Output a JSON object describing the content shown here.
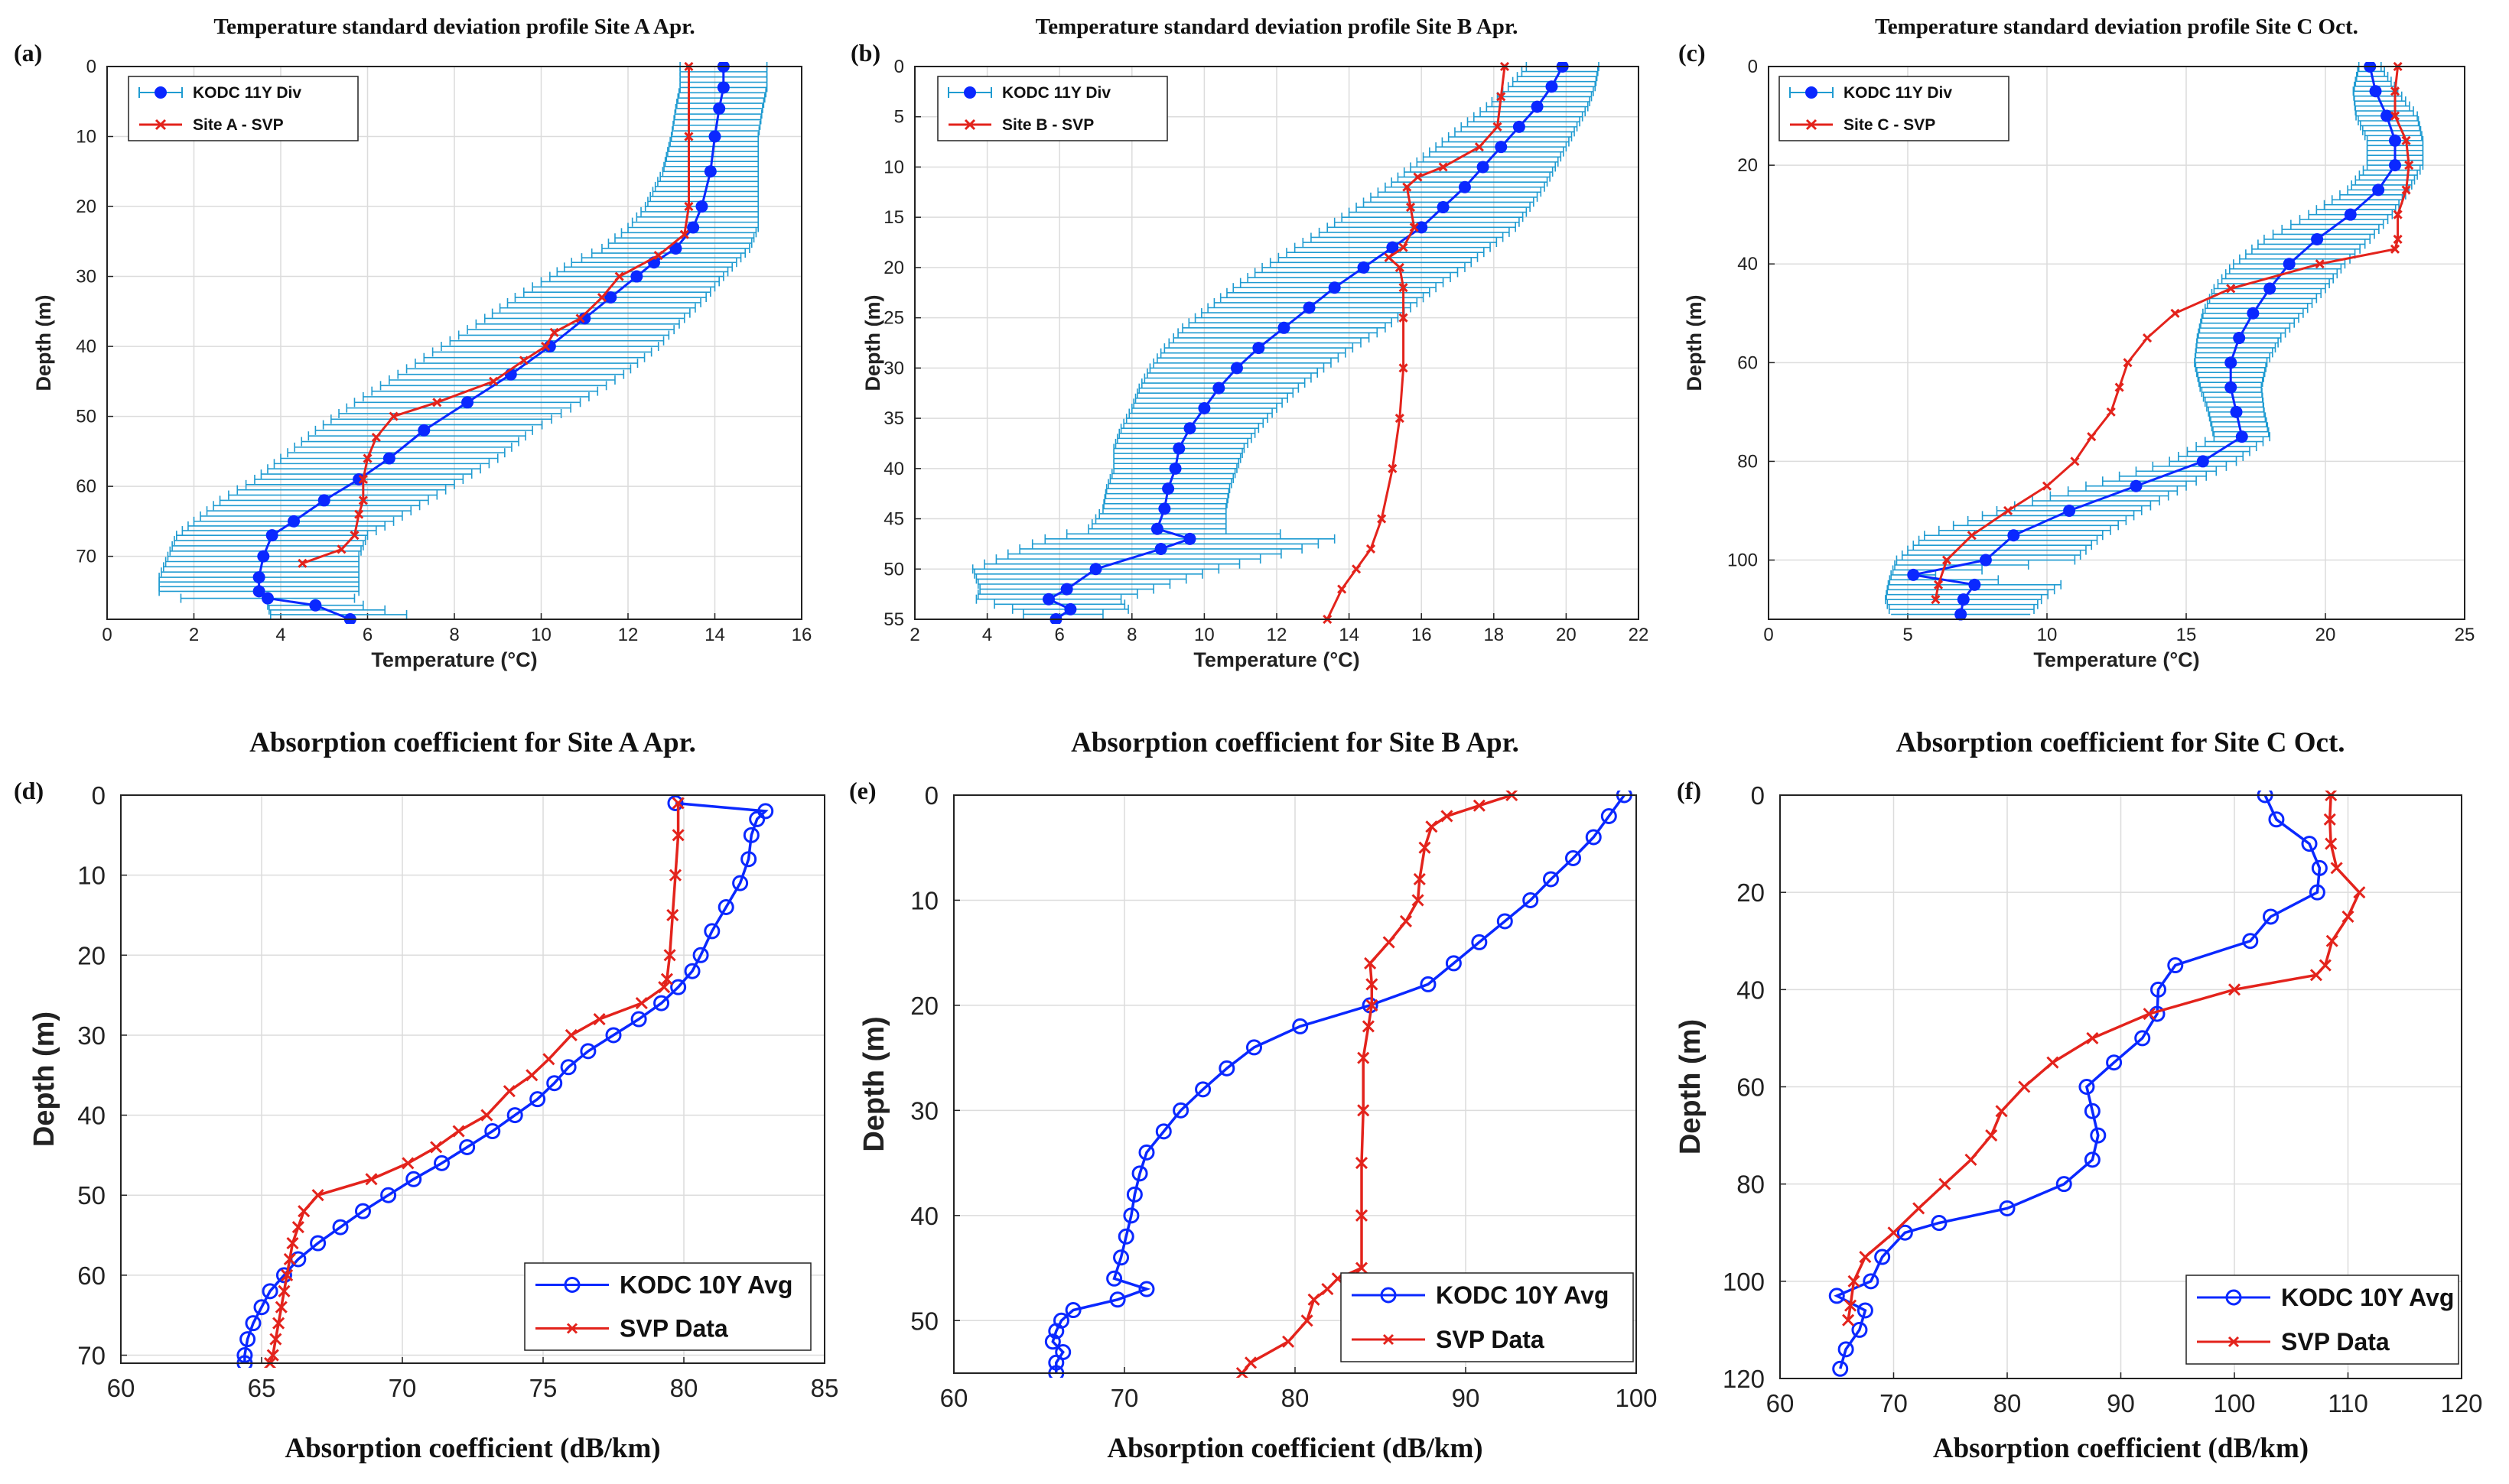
{
  "chart_data": [
    {
      "id": "a",
      "panel_label": "(a)",
      "type": "line",
      "title": "Temperature standard deviation profile Site A Apr.",
      "xlabel": "Temperature (°C)",
      "ylabel": "Depth (m)",
      "xlim": [
        0,
        16
      ],
      "ylim": [
        0,
        79
      ],
      "y_reversed": true,
      "xticks": [
        0,
        2,
        4,
        6,
        8,
        10,
        12,
        14,
        16
      ],
      "yticks": [
        0,
        10,
        20,
        30,
        40,
        50,
        60,
        70
      ],
      "legend": {
        "location": "top-left",
        "entries": [
          "KODC 11Y Div",
          "Site A - SVP"
        ]
      },
      "series": [
        {
          "name": "KODC 11Y Div",
          "color": "#0a28ff",
          "marker": "dot",
          "err_color": "#1f9bd1",
          "y": [
            0,
            3,
            6,
            10,
            15,
            20,
            23,
            26,
            28,
            30,
            33,
            36,
            40,
            44,
            48,
            52,
            56,
            59,
            62,
            65,
            67,
            70,
            73,
            75,
            76,
            77,
            79
          ],
          "x": [
            14.2,
            14.2,
            14.1,
            14.0,
            13.9,
            13.7,
            13.5,
            13.1,
            12.6,
            12.2,
            11.6,
            11.0,
            10.2,
            9.3,
            8.3,
            7.3,
            6.5,
            5.8,
            5.0,
            4.3,
            3.8,
            3.6,
            3.5,
            3.5,
            3.7,
            4.8,
            5.6
          ],
          "err": [
            1.0,
            1.0,
            1.0,
            1.0,
            1.1,
            1.3,
            1.5,
            1.7,
            1.9,
            2.0,
            2.2,
            2.3,
            2.5,
            2.6,
            2.6,
            2.5,
            2.5,
            2.4,
            2.4,
            2.3,
            2.2,
            2.2,
            2.3,
            2.3,
            2.0,
            1.1,
            1.8
          ]
        },
        {
          "name": "Site A - SVP",
          "color": "#e3231c",
          "marker": "x",
          "y": [
            0,
            10,
            20,
            24,
            27,
            30,
            33,
            36,
            38,
            40,
            42,
            45,
            48,
            50,
            53,
            56,
            59,
            62,
            64,
            67,
            69,
            71
          ],
          "x": [
            13.4,
            13.4,
            13.4,
            13.3,
            12.7,
            11.8,
            11.4,
            10.9,
            10.3,
            10.1,
            9.6,
            8.9,
            7.6,
            6.6,
            6.2,
            6.0,
            5.9,
            5.9,
            5.8,
            5.7,
            5.4,
            4.5
          ]
        }
      ]
    },
    {
      "id": "b",
      "panel_label": "(b)",
      "type": "line",
      "title": "Temperature standard deviation profile Site B Apr.",
      "xlabel": "Temperature (°C)",
      "ylabel": "Depth (m)",
      "xlim": [
        2,
        22
      ],
      "ylim": [
        0,
        55
      ],
      "y_reversed": true,
      "xticks": [
        2,
        4,
        6,
        8,
        10,
        12,
        14,
        16,
        18,
        20,
        22
      ],
      "yticks": [
        0,
        5,
        10,
        15,
        20,
        25,
        30,
        35,
        40,
        45,
        50,
        55
      ],
      "legend": {
        "location": "top-left",
        "entries": [
          "KODC 11Y Div",
          "Site B - SVP"
        ]
      },
      "series": [
        {
          "name": "KODC 11Y Div",
          "color": "#0a28ff",
          "marker": "dot",
          "err_color": "#1f9bd1",
          "y": [
            0,
            2,
            4,
            6,
            8,
            10,
            12,
            14,
            16,
            18,
            20,
            22,
            24,
            26,
            28,
            30,
            32,
            34,
            36,
            38,
            40,
            42,
            44,
            46,
            47,
            48,
            50,
            52,
            53,
            54,
            55
          ],
          "x": [
            19.9,
            19.6,
            19.2,
            18.7,
            18.2,
            17.7,
            17.2,
            16.6,
            16.0,
            15.2,
            14.4,
            13.6,
            12.9,
            12.2,
            11.5,
            10.9,
            10.4,
            10.0,
            9.6,
            9.3,
            9.2,
            9.0,
            8.9,
            8.7,
            9.6,
            8.8,
            7.0,
            6.2,
            5.7,
            6.3,
            5.9
          ],
          "err": [
            1.0,
            1.2,
            1.4,
            1.6,
            1.8,
            2.0,
            2.2,
            2.4,
            2.6,
            2.7,
            2.8,
            2.8,
            2.8,
            2.8,
            2.6,
            2.4,
            2.2,
            2.0,
            1.9,
            1.8,
            1.7,
            1.7,
            1.7,
            1.9,
            4.0,
            3.9,
            3.4,
            2.4,
            2.0,
            1.6,
            0.6
          ]
        },
        {
          "name": "Site B - SVP",
          "color": "#e3231c",
          "marker": "x",
          "y": [
            0,
            3,
            6,
            8,
            10,
            11,
            12,
            14,
            16,
            18,
            19,
            20,
            22,
            25,
            30,
            35,
            40,
            45,
            48,
            50,
            52,
            55
          ],
          "x": [
            18.3,
            18.2,
            18.1,
            17.6,
            16.6,
            15.9,
            15.6,
            15.7,
            15.8,
            15.5,
            15.1,
            15.4,
            15.5,
            15.5,
            15.5,
            15.4,
            15.2,
            14.9,
            14.6,
            14.2,
            13.8,
            13.4
          ]
        }
      ]
    },
    {
      "id": "c",
      "panel_label": "(c)",
      "type": "line",
      "title": "Temperature standard deviation profile Site C Oct.",
      "xlabel": "Temperature (°C)",
      "ylabel": "Depth (m)",
      "xlim": [
        0,
        25
      ],
      "ylim": [
        0,
        112
      ],
      "y_reversed": true,
      "xticks": [
        0,
        5,
        10,
        15,
        20,
        25
      ],
      "yticks": [
        0,
        20,
        40,
        60,
        80,
        100
      ],
      "legend": {
        "location": "top-left",
        "entries": [
          "KODC 11Y Div",
          "Site C - SVP"
        ]
      },
      "series": [
        {
          "name": "KODC 11Y Div",
          "color": "#0a28ff",
          "marker": "dot",
          "err_color": "#1f9bd1",
          "y": [
            0,
            5,
            10,
            15,
            20,
            25,
            30,
            35,
            40,
            45,
            50,
            55,
            60,
            65,
            70,
            75,
            80,
            85,
            90,
            95,
            100,
            103,
            105,
            108,
            111
          ],
          "x": [
            21.6,
            21.8,
            22.2,
            22.5,
            22.5,
            21.9,
            20.9,
            19.7,
            18.7,
            18.0,
            17.4,
            16.9,
            16.6,
            16.6,
            16.8,
            17.0,
            15.6,
            13.2,
            10.8,
            8.8,
            7.8,
            5.2,
            7.4,
            7.0,
            6.9
          ],
          "err": [
            0.4,
            0.8,
            1.1,
            1.0,
            1.0,
            1.1,
            1.5,
            1.9,
            2.0,
            2.0,
            1.8,
            1.5,
            1.3,
            1.1,
            1.0,
            1.0,
            1.2,
            1.8,
            2.6,
            3.2,
            3.2,
            0.8,
            3.1,
            2.8,
            2.5
          ]
        },
        {
          "name": "Site C - SVP",
          "color": "#e3231c",
          "marker": "x",
          "y": [
            0,
            5,
            10,
            15,
            20,
            25,
            30,
            35,
            37,
            40,
            45,
            50,
            55,
            60,
            65,
            70,
            75,
            80,
            85,
            90,
            95,
            100,
            105,
            108
          ],
          "x": [
            22.6,
            22.5,
            22.5,
            22.9,
            23.0,
            22.9,
            22.6,
            22.6,
            22.5,
            19.8,
            16.6,
            14.6,
            13.6,
            12.9,
            12.6,
            12.3,
            11.6,
            11.0,
            10.0,
            8.6,
            7.3,
            6.4,
            6.1,
            6.0
          ]
        }
      ]
    },
    {
      "id": "d",
      "panel_label": "(d)",
      "type": "line",
      "title": "Absorption coefficient for Site A Apr.",
      "xlabel": "Absorption coefficient (dB/km)",
      "ylabel": "Depth (m)",
      "xlim": [
        60,
        85
      ],
      "ylim": [
        0,
        71
      ],
      "y_reversed": true,
      "xticks": [
        60,
        65,
        70,
        75,
        80,
        85
      ],
      "yticks": [
        0,
        10,
        20,
        30,
        40,
        50,
        60,
        70
      ],
      "legend": {
        "location": "bottom-right",
        "entries": [
          "KODC 10Y Avg",
          "SVP Data"
        ]
      },
      "series": [
        {
          "name": "KODC 10Y Avg",
          "color": "#0a28ff",
          "marker": "circle",
          "y": [
            1,
            2,
            3,
            5,
            8,
            11,
            14,
            17,
            20,
            22,
            24,
            26,
            28,
            30,
            32,
            34,
            36,
            38,
            40,
            42,
            44,
            46,
            48,
            50,
            52,
            54,
            56,
            58,
            60,
            62,
            64,
            66,
            68,
            70,
            71
          ],
          "x": [
            79.7,
            82.9,
            82.6,
            82.4,
            82.3,
            82.0,
            81.5,
            81.0,
            80.6,
            80.3,
            79.8,
            79.2,
            78.4,
            77.5,
            76.6,
            75.9,
            75.4,
            74.8,
            74.0,
            73.2,
            72.3,
            71.4,
            70.4,
            69.5,
            68.6,
            67.8,
            67.0,
            66.3,
            65.8,
            65.3,
            65.0,
            64.7,
            64.5,
            64.4,
            64.4
          ]
        },
        {
          "name": "SVP Data",
          "color": "#e3231c",
          "marker": "x",
          "y": [
            1,
            5,
            10,
            15,
            20,
            23,
            24,
            26,
            28,
            30,
            33,
            35,
            37,
            40,
            42,
            44,
            46,
            48,
            50,
            52,
            54,
            56,
            58,
            60,
            62,
            64,
            66,
            68,
            70,
            71
          ],
          "x": [
            79.8,
            79.8,
            79.7,
            79.6,
            79.5,
            79.4,
            79.3,
            78.5,
            77.0,
            76.0,
            75.2,
            74.6,
            73.8,
            73.0,
            72.0,
            71.2,
            70.2,
            68.9,
            67.0,
            66.5,
            66.3,
            66.1,
            66.0,
            65.9,
            65.8,
            65.7,
            65.6,
            65.5,
            65.4,
            65.3
          ]
        }
      ]
    },
    {
      "id": "e",
      "panel_label": "(e)",
      "type": "line",
      "title": "Absorption coefficient for Site B Apr.",
      "xlabel": "Absorption coefficient (dB/km)",
      "ylabel": "Depth (m)",
      "xlim": [
        60,
        100
      ],
      "ylim": [
        0,
        55
      ],
      "y_reversed": true,
      "xticks": [
        60,
        70,
        80,
        90,
        100
      ],
      "yticks": [
        0,
        10,
        20,
        30,
        40,
        50
      ],
      "legend": {
        "location": "bottom-right",
        "entries": [
          "KODC 10Y Avg",
          "SVP Data"
        ]
      },
      "series": [
        {
          "name": "KODC 10Y Avg",
          "color": "#0a28ff",
          "marker": "circle",
          "y": [
            0,
            2,
            4,
            6,
            8,
            10,
            12,
            14,
            16,
            18,
            20,
            22,
            24,
            26,
            28,
            30,
            32,
            34,
            36,
            38,
            40,
            42,
            44,
            46,
            47,
            48,
            49,
            50,
            51,
            52,
            53,
            54,
            55
          ],
          "x": [
            99.3,
            98.4,
            97.5,
            96.3,
            95.0,
            93.8,
            92.3,
            90.8,
            89.3,
            87.8,
            84.4,
            80.3,
            77.6,
            76.0,
            74.6,
            73.3,
            72.3,
            71.3,
            70.9,
            70.6,
            70.4,
            70.1,
            69.8,
            69.4,
            71.3,
            69.6,
            67.0,
            66.3,
            66.0,
            65.8,
            66.4,
            66.0,
            66.0
          ]
        },
        {
          "name": "SVP Data",
          "color": "#e3231c",
          "marker": "x",
          "y": [
            0,
            1,
            2,
            3,
            5,
            8,
            10,
            12,
            14,
            16,
            18,
            20,
            22,
            25,
            30,
            35,
            40,
            45,
            46,
            47,
            48,
            50,
            52,
            54,
            55
          ],
          "x": [
            92.7,
            90.8,
            88.9,
            88.0,
            87.6,
            87.3,
            87.2,
            86.5,
            85.5,
            84.4,
            84.5,
            84.5,
            84.3,
            84.0,
            84.0,
            83.9,
            83.9,
            83.9,
            82.5,
            81.9,
            81.1,
            80.7,
            79.6,
            77.4,
            76.9
          ]
        }
      ]
    },
    {
      "id": "f",
      "panel_label": "(f)",
      "type": "line",
      "title": "Absorption coefficient for Site C Oct.",
      "xlabel": "Absorption coefficient (dB/km)",
      "ylabel": "Depth (m)",
      "xlim": [
        60,
        120
      ],
      "ylim": [
        0,
        120
      ],
      "y_reversed": true,
      "xticks": [
        60,
        70,
        80,
        90,
        100,
        110,
        120
      ],
      "yticks": [
        0,
        20,
        40,
        60,
        80,
        100,
        120
      ],
      "legend": {
        "location": "bottom-right",
        "entries": [
          "KODC 10Y Avg",
          "SVP Data"
        ]
      },
      "series": [
        {
          "name": "KODC 10Y Avg",
          "color": "#0a28ff",
          "marker": "circle",
          "y": [
            0,
            5,
            10,
            15,
            20,
            25,
            30,
            35,
            40,
            45,
            50,
            55,
            60,
            65,
            70,
            75,
            80,
            85,
            88,
            90,
            95,
            100,
            103,
            106,
            110,
            114,
            118
          ],
          "x": [
            102.7,
            103.7,
            106.6,
            107.5,
            107.3,
            103.2,
            101.4,
            94.8,
            93.3,
            93.2,
            91.9,
            89.4,
            87.0,
            87.5,
            88.0,
            87.5,
            85.0,
            80.0,
            74.0,
            71.0,
            69.0,
            68.0,
            65.0,
            67.5,
            67.0,
            65.8,
            65.3
          ]
        },
        {
          "name": "SVP Data",
          "color": "#e3231c",
          "marker": "x",
          "y": [
            0,
            5,
            10,
            15,
            20,
            25,
            30,
            35,
            37,
            40,
            45,
            50,
            55,
            60,
            65,
            70,
            75,
            80,
            85,
            90,
            95,
            100,
            105,
            108
          ],
          "x": [
            108.5,
            108.4,
            108.5,
            109.0,
            111.0,
            110.0,
            108.6,
            108.0,
            107.2,
            100.0,
            92.5,
            87.5,
            84.0,
            81.5,
            79.5,
            78.6,
            76.8,
            74.5,
            72.2,
            70.0,
            67.5,
            66.5,
            66.2,
            66.0
          ]
        }
      ]
    }
  ]
}
